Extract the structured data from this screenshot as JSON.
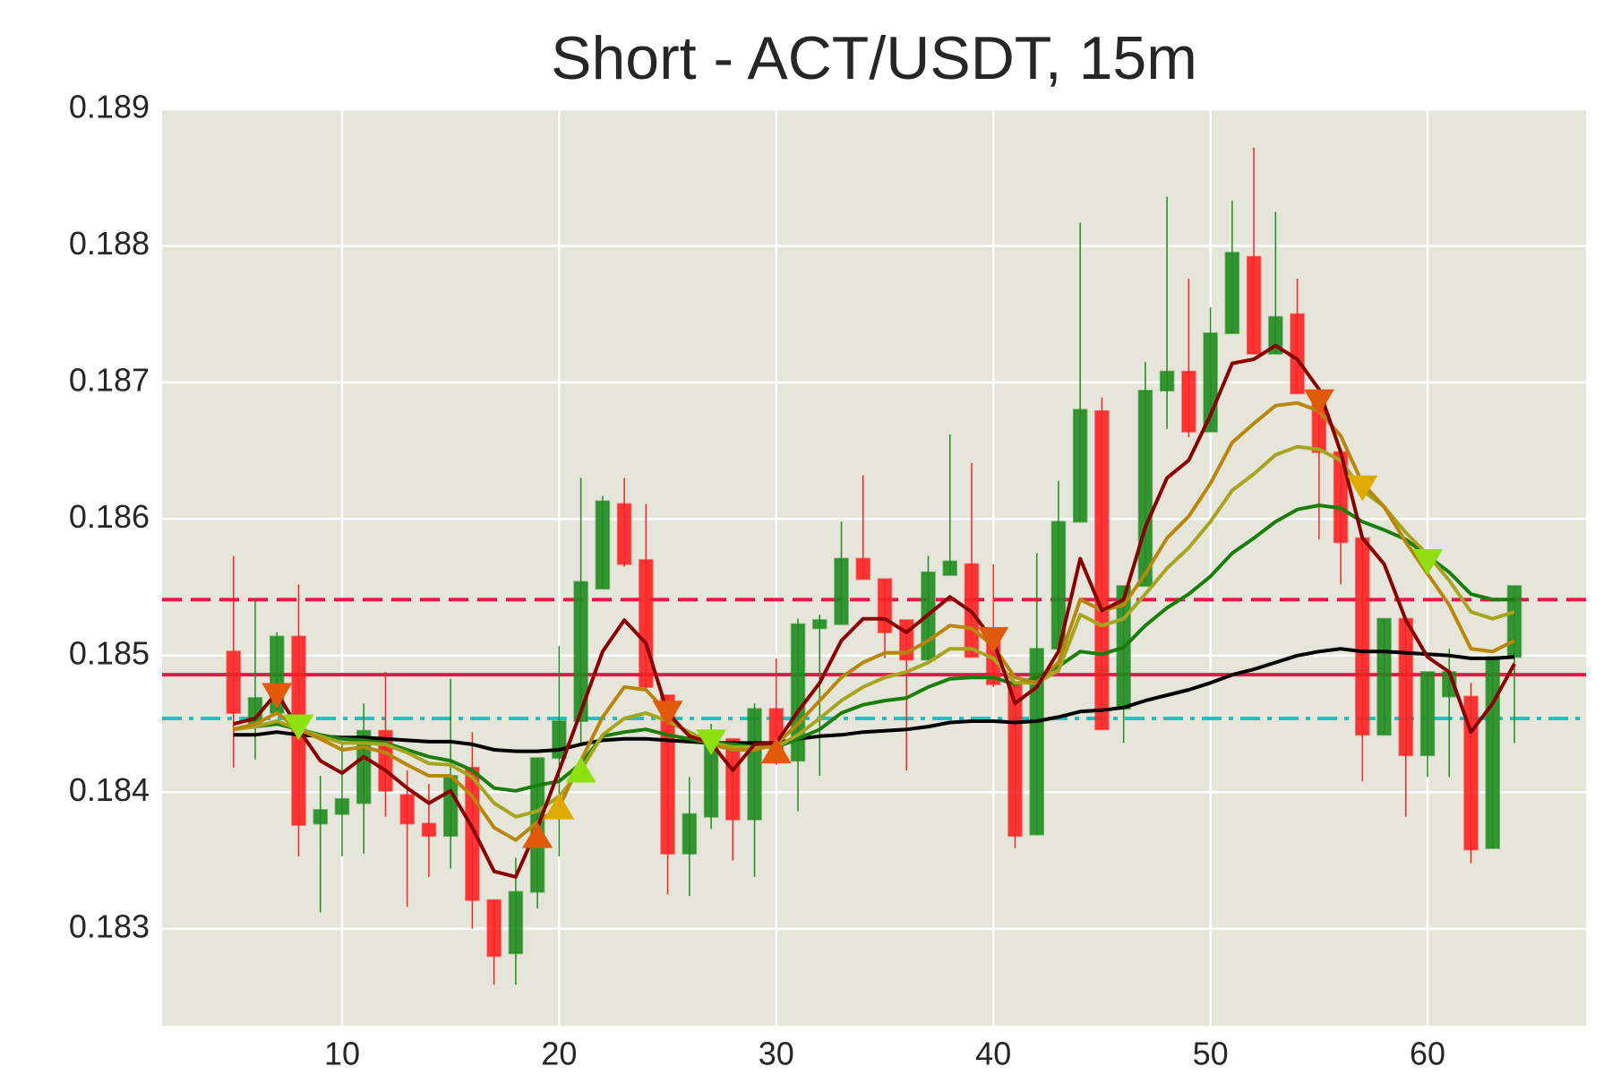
{
  "chart_data": {
    "type": "candlestick",
    "title": "Short - ACT/USDT, 15m",
    "xlim": [
      1.71,
      67.3
    ],
    "ylim": [
      0.18229,
      0.189
    ],
    "xticks": [
      10,
      20,
      30,
      40,
      50,
      60
    ],
    "yticks": [
      0.183,
      0.184,
      0.185,
      0.186,
      0.187,
      0.188,
      0.189
    ],
    "grid": true,
    "up_color": "#1e8c1e",
    "down_color": "#ff2222",
    "x": [
      5,
      6,
      7,
      8,
      9,
      10,
      11,
      12,
      13,
      14,
      15,
      16,
      17,
      18,
      19,
      20,
      21,
      22,
      23,
      24,
      25,
      26,
      27,
      28,
      29,
      30,
      31,
      32,
      33,
      34,
      35,
      36,
      37,
      38,
      39,
      40,
      41,
      42,
      43,
      44,
      45,
      46,
      47,
      48,
      49,
      50,
      51,
      52,
      53,
      54,
      55,
      56,
      57,
      58,
      59,
      60,
      61,
      62,
      63,
      64
    ],
    "open": [
      0.18503,
      0.1845,
      0.18458,
      0.18514,
      0.18377,
      0.18384,
      0.18392,
      0.18445,
      0.18398,
      0.18377,
      0.18368,
      0.18418,
      0.18321,
      0.18282,
      0.18327,
      0.18425,
      0.18452,
      0.18549,
      0.18611,
      0.1857,
      0.18471,
      0.18355,
      0.18382,
      0.18439,
      0.1838,
      0.18461,
      0.18423,
      0.1852,
      0.18523,
      0.18571,
      0.18556,
      0.18526,
      0.18497,
      0.18559,
      0.18567,
      0.18517,
      0.18479,
      0.18369,
      0.18505,
      0.18598,
      0.18679,
      0.18461,
      0.18551,
      0.18694,
      0.18708,
      0.18664,
      0.18736,
      0.18792,
      0.18721,
      0.1875,
      0.18692,
      0.18649,
      0.18586,
      0.18442,
      0.18527,
      0.18427,
      0.1847,
      0.1847,
      0.18359,
      0.18499
    ],
    "high": [
      0.18573,
      0.18542,
      0.18517,
      0.18552,
      0.18412,
      0.18435,
      0.18465,
      0.18488,
      0.18416,
      0.18406,
      0.18483,
      0.18444,
      0.18321,
      0.18352,
      0.18425,
      0.18507,
      0.1863,
      0.18617,
      0.1863,
      0.18611,
      0.18471,
      0.18411,
      0.1845,
      0.18439,
      0.18465,
      0.18498,
      0.18527,
      0.1853,
      0.18598,
      0.18632,
      0.18556,
      0.18526,
      0.18573,
      0.18662,
      0.18641,
      0.18567,
      0.18479,
      0.18575,
      0.18628,
      0.18817,
      0.18689,
      0.18551,
      0.18715,
      0.18836,
      0.18776,
      0.18755,
      0.18833,
      0.18872,
      0.18825,
      0.18776,
      0.18692,
      0.18649,
      0.18586,
      0.18527,
      0.18527,
      0.18488,
      0.18505,
      0.1848,
      0.18499,
      0.18551
    ],
    "low": [
      0.18418,
      0.18424,
      0.18458,
      0.18353,
      0.18312,
      0.18353,
      0.18355,
      0.18382,
      0.18316,
      0.18338,
      0.18344,
      0.183,
      0.18259,
      0.18259,
      0.18315,
      0.18353,
      0.18435,
      0.18549,
      0.18565,
      0.18474,
      0.18325,
      0.18324,
      0.18373,
      0.1835,
      0.18338,
      0.1842,
      0.18386,
      0.18412,
      0.18523,
      0.18556,
      0.18498,
      0.18416,
      0.18497,
      0.18559,
      0.18499,
      0.18477,
      0.18359,
      0.18369,
      0.18505,
      0.18598,
      0.18446,
      0.18436,
      0.18551,
      0.18666,
      0.1866,
      0.18664,
      0.18736,
      0.18721,
      0.18721,
      0.18692,
      0.18585,
      0.18552,
      0.18408,
      0.18442,
      0.18382,
      0.18411,
      0.18411,
      0.18348,
      0.18359,
      0.18436
    ],
    "close": [
      0.18458,
      0.18469,
      0.18514,
      0.18376,
      0.18387,
      0.18395,
      0.18445,
      0.18401,
      0.18377,
      0.18368,
      0.18412,
      0.18321,
      0.1828,
      0.18327,
      0.18425,
      0.18452,
      0.18554,
      0.18613,
      0.18567,
      0.18477,
      0.18355,
      0.18384,
      0.18439,
      0.1838,
      0.18461,
      0.18423,
      0.18523,
      0.18526,
      0.18571,
      0.18556,
      0.18517,
      0.18497,
      0.18561,
      0.18569,
      0.18499,
      0.18479,
      0.18368,
      0.18505,
      0.18598,
      0.1868,
      0.18446,
      0.18551,
      0.18694,
      0.18708,
      0.18664,
      0.18736,
      0.18795,
      0.18721,
      0.18748,
      0.18692,
      0.18649,
      0.18583,
      0.18442,
      0.18527,
      0.18427,
      0.18488,
      0.18488,
      0.18358,
      0.18499,
      0.18551
    ],
    "lines": [
      {
        "color": "#000000",
        "values": [
          0.18442,
          0.18442,
          0.18444,
          0.18442,
          0.18441,
          0.1844,
          0.1844,
          0.18439,
          0.18438,
          0.18437,
          0.18437,
          0.18435,
          0.18431,
          0.1843,
          0.1843,
          0.18431,
          0.18435,
          0.18438,
          0.18439,
          0.18439,
          0.18438,
          0.18437,
          0.18436,
          0.18436,
          0.18436,
          0.18436,
          0.18439,
          0.18441,
          0.18442,
          0.18444,
          0.18445,
          0.18446,
          0.18448,
          0.18451,
          0.18452,
          0.18452,
          0.18451,
          0.18452,
          0.18455,
          0.18459,
          0.1846,
          0.18462,
          0.18467,
          0.18471,
          0.18475,
          0.1848,
          0.18486,
          0.1849,
          0.18495,
          0.185,
          0.18503,
          0.18505,
          0.18503,
          0.18503,
          0.18502,
          0.18501,
          0.185,
          0.18498,
          0.18498,
          0.18499
        ]
      },
      {
        "color": "#1a7f0a",
        "values": [
          0.18446,
          0.18448,
          0.1845,
          0.18446,
          0.18442,
          0.18439,
          0.18438,
          0.18436,
          0.18431,
          0.18426,
          0.18423,
          0.18416,
          0.18403,
          0.18401,
          0.18405,
          0.18408,
          0.18421,
          0.18441,
          0.18444,
          0.18446,
          0.18442,
          0.18439,
          0.18436,
          0.18435,
          0.18433,
          0.18433,
          0.18439,
          0.18446,
          0.18458,
          0.18464,
          0.18467,
          0.18469,
          0.18477,
          0.18483,
          0.18484,
          0.18484,
          0.18479,
          0.18484,
          0.18492,
          0.18503,
          0.18501,
          0.18506,
          0.18522,
          0.18535,
          0.18545,
          0.18558,
          0.18575,
          0.18586,
          0.18598,
          0.18607,
          0.1861,
          0.18608,
          0.18598,
          0.18592,
          0.18585,
          0.18573,
          0.18561,
          0.18545,
          0.18541,
          0.18541
        ]
      },
      {
        "color": "#a5a51e",
        "values": [
          0.18446,
          0.18448,
          0.18452,
          0.18446,
          0.18441,
          0.18436,
          0.18436,
          0.18435,
          0.18429,
          0.18421,
          0.1842,
          0.18411,
          0.18392,
          0.18382,
          0.18386,
          0.18397,
          0.18416,
          0.18442,
          0.18454,
          0.18458,
          0.18452,
          0.18444,
          0.18436,
          0.18433,
          0.18433,
          0.18433,
          0.18442,
          0.18454,
          0.18467,
          0.18477,
          0.18484,
          0.18488,
          0.18495,
          0.18505,
          0.18505,
          0.18498,
          0.1848,
          0.1848,
          0.18489,
          0.1853,
          0.18522,
          0.18527,
          0.18545,
          0.18564,
          0.18579,
          0.18598,
          0.18621,
          0.18633,
          0.18647,
          0.18653,
          0.18651,
          0.18643,
          0.18621,
          0.18609,
          0.1859,
          0.18574,
          0.18555,
          0.18532,
          0.18527,
          0.18532
        ]
      },
      {
        "color": "#b8860b",
        "values": [
          0.18446,
          0.1845,
          0.18458,
          0.18446,
          0.18439,
          0.18431,
          0.18433,
          0.18429,
          0.1842,
          0.18412,
          0.18412,
          0.18397,
          0.18374,
          0.18365,
          0.18378,
          0.18389,
          0.18423,
          0.18455,
          0.18477,
          0.18475,
          0.18458,
          0.18441,
          0.18435,
          0.18431,
          0.18431,
          0.18435,
          0.1845,
          0.18467,
          0.18484,
          0.18495,
          0.18502,
          0.18502,
          0.18511,
          0.18522,
          0.1852,
          0.18507,
          0.18484,
          0.1848,
          0.18495,
          0.18541,
          0.18533,
          0.18537,
          0.1856,
          0.18586,
          0.18602,
          0.18626,
          0.18656,
          0.1867,
          0.18683,
          0.18685,
          0.18679,
          0.18661,
          0.18626,
          0.18609,
          0.18583,
          0.1856,
          0.18537,
          0.18505,
          0.18503,
          0.18511
        ]
      },
      {
        "color": "#8b0000",
        "values": [
          0.1845,
          0.18454,
          0.18473,
          0.18446,
          0.18423,
          0.18414,
          0.18426,
          0.18416,
          0.18403,
          0.18392,
          0.18401,
          0.18374,
          0.18342,
          0.18338,
          0.18374,
          0.18416,
          0.18459,
          0.18503,
          0.18526,
          0.18509,
          0.18458,
          0.18441,
          0.18436,
          0.18416,
          0.18435,
          0.18436,
          0.18459,
          0.1848,
          0.18511,
          0.18527,
          0.18527,
          0.18517,
          0.1853,
          0.18543,
          0.18532,
          0.18511,
          0.18465,
          0.18477,
          0.18503,
          0.18571,
          0.18533,
          0.18541,
          0.18594,
          0.1863,
          0.18643,
          0.18676,
          0.18714,
          0.18717,
          0.18727,
          0.18717,
          0.18695,
          0.18649,
          0.18586,
          0.18567,
          0.18526,
          0.18499,
          0.18488,
          0.18444,
          0.18465,
          0.18494
        ]
      }
    ],
    "hlines": [
      {
        "value": 0.18541,
        "color": "#e8174a",
        "style": "dashed"
      },
      {
        "value": 0.18486,
        "color": "#e8174a",
        "style": "solid"
      },
      {
        "value": 0.18454,
        "color": "#17c4c4",
        "style": "dashdot"
      }
    ],
    "markers": [
      {
        "shape": "down",
        "color": "#e05a0a",
        "x": [
          7,
          25,
          40,
          55
        ],
        "y": [
          0.18471,
          0.18458,
          0.18512,
          0.18686
        ]
      },
      {
        "shape": "down",
        "color": "#8fe010",
        "x": [
          8,
          27,
          60
        ],
        "y": [
          0.18448,
          0.18437,
          0.18569
        ]
      },
      {
        "shape": "down",
        "color": "#e0ab00",
        "x": [
          57
        ],
        "y": [
          0.18623
        ]
      },
      {
        "shape": "up",
        "color": "#e05a0a",
        "x": [
          19,
          30
        ],
        "y": [
          0.18368,
          0.1843
        ]
      },
      {
        "shape": "up",
        "color": "#e0ab00",
        "x": [
          20
        ],
        "y": [
          0.18389
        ]
      },
      {
        "shape": "up",
        "color": "#8fe010",
        "x": [
          21
        ],
        "y": [
          0.18416
        ]
      }
    ]
  }
}
